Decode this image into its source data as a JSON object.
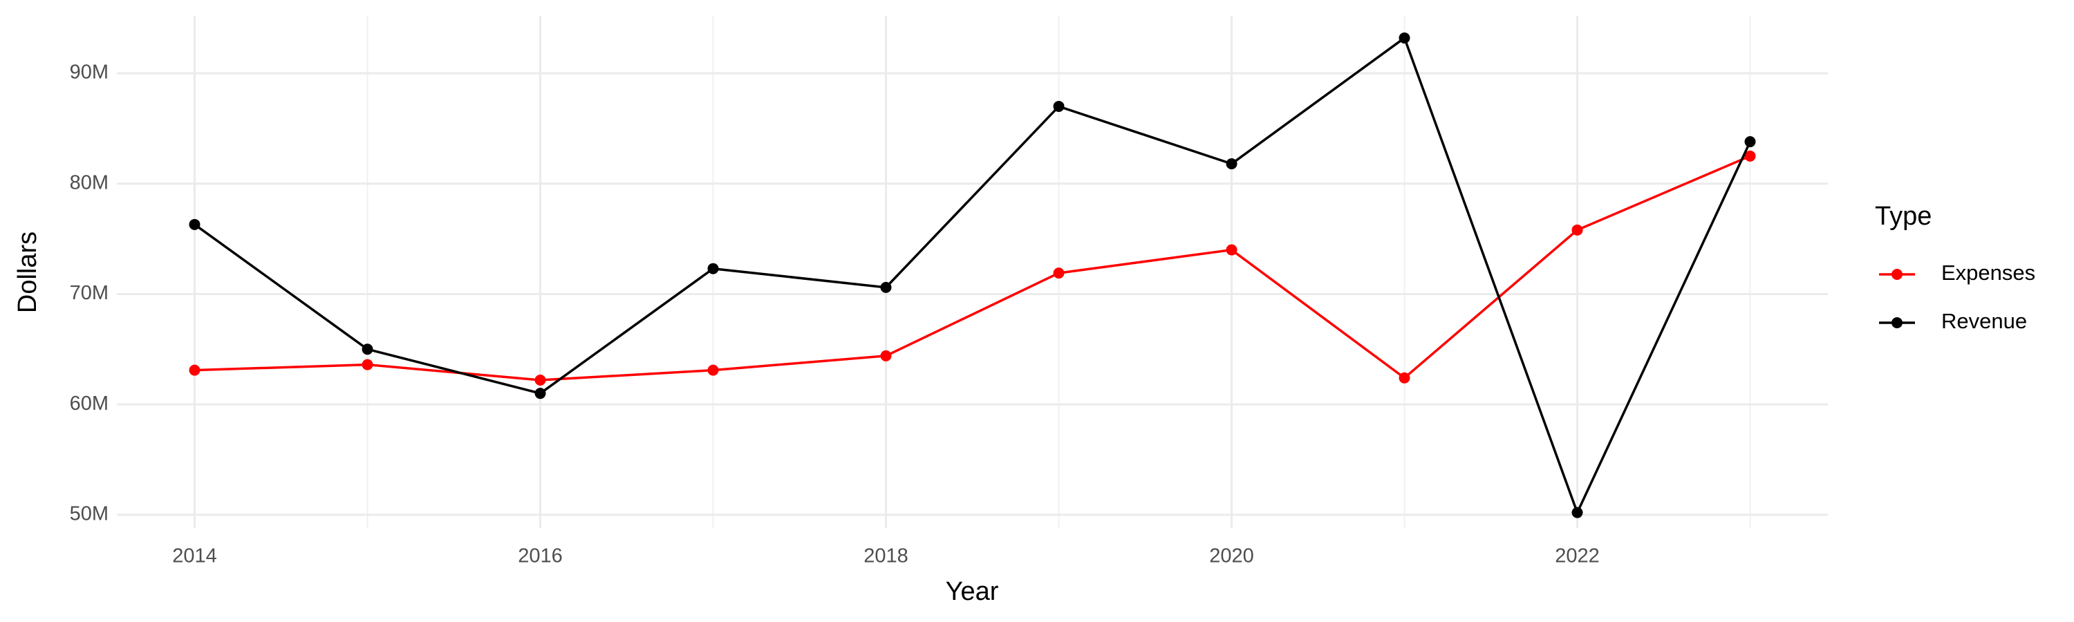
{
  "chart_data": {
    "type": "line",
    "x_label": "Year",
    "y_label": "Dollars",
    "legend_title": "Type",
    "x": [
      2014,
      2015,
      2016,
      2017,
      2018,
      2019,
      2020,
      2021,
      2022,
      2023
    ],
    "series": [
      {
        "name": "Expenses",
        "color": "#ff0000",
        "values": [
          63100000,
          63600000,
          62200000,
          63100000,
          64400000,
          71900000,
          74000000,
          62400000,
          75800000,
          82500000
        ]
      },
      {
        "name": "Revenue",
        "color": "#000000",
        "values": [
          76300000,
          65000000,
          61000000,
          72300000,
          70600000,
          87000000,
          81800000,
          93200000,
          50200000,
          83800000
        ]
      }
    ],
    "xlim": [
      2013.55,
      2023.45
    ],
    "xticks": [
      2014,
      2016,
      2018,
      2020,
      2022
    ],
    "ylim": [
      48800000,
      95200000
    ],
    "yticks": [
      {
        "value": 50000000,
        "label": "50M"
      },
      {
        "value": 60000000,
        "label": "60M"
      },
      {
        "value": 70000000,
        "label": "70M"
      },
      {
        "value": 80000000,
        "label": "80M"
      },
      {
        "value": 90000000,
        "label": "90M"
      }
    ],
    "grid": true,
    "legend": "right"
  }
}
